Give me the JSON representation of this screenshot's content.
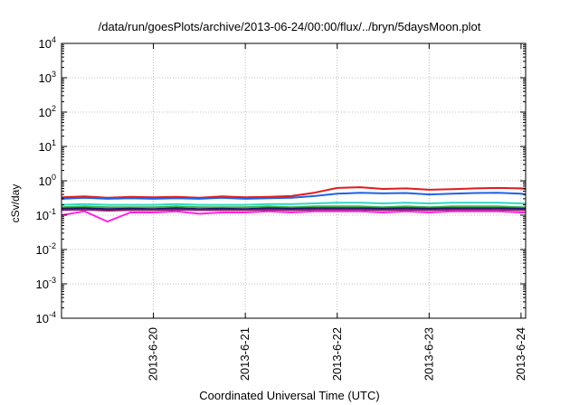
{
  "chart_data": {
    "type": "line",
    "title": "/data/run/goesPlots/archive/2013-06-24/00:00/flux/../bryn/5daysMoon.plot",
    "xlabel": "Coordinated Universal Time (UTC)",
    "ylabel": "cSv/day",
    "yscale": "log",
    "ylim": [
      0.0001,
      10000
    ],
    "y_ticks": [
      {
        "value": 0.0001,
        "base": "10",
        "exp": "-4"
      },
      {
        "value": 0.001,
        "base": "10",
        "exp": "-3"
      },
      {
        "value": 0.01,
        "base": "10",
        "exp": "-2"
      },
      {
        "value": 0.1,
        "base": "10",
        "exp": "-1"
      },
      {
        "value": 1,
        "base": "10",
        "exp": "0"
      },
      {
        "value": 10,
        "base": "10",
        "exp": "1"
      },
      {
        "value": 100,
        "base": "10",
        "exp": "2"
      },
      {
        "value": 1000,
        "base": "10",
        "exp": "3"
      },
      {
        "value": 10000,
        "base": "10",
        "exp": "4"
      }
    ],
    "x_ticks": [
      "2013-6-20",
      "2013-6-21",
      "2013-6-22",
      "2013-6-23",
      "2013-6-24"
    ],
    "x_tick_values": [
      1.0,
      2.0,
      3.0,
      4.0,
      5.0
    ],
    "xlim": [
      0.0,
      5.05
    ],
    "grid": true,
    "legend": "none",
    "series": [
      {
        "color": "#e41a1c",
        "x": [
          0.0,
          0.25,
          0.5,
          0.75,
          1.0,
          1.25,
          1.5,
          1.75,
          2.0,
          2.25,
          2.5,
          2.75,
          3.0,
          3.25,
          3.5,
          3.75,
          4.0,
          4.25,
          4.5,
          4.75,
          5.0,
          5.05
        ],
        "y": [
          0.33,
          0.35,
          0.32,
          0.34,
          0.33,
          0.34,
          0.32,
          0.35,
          0.33,
          0.34,
          0.36,
          0.45,
          0.62,
          0.65,
          0.58,
          0.6,
          0.55,
          0.57,
          0.6,
          0.62,
          0.6,
          0.58
        ]
      },
      {
        "color": "#1e63e6",
        "x": [
          0.0,
          0.25,
          0.5,
          0.75,
          1.0,
          1.25,
          1.5,
          1.75,
          2.0,
          2.25,
          2.5,
          2.75,
          3.0,
          3.25,
          3.5,
          3.75,
          4.0,
          4.25,
          4.5,
          4.75,
          5.0,
          5.05
        ],
        "y": [
          0.3,
          0.32,
          0.3,
          0.31,
          0.3,
          0.31,
          0.3,
          0.32,
          0.3,
          0.31,
          0.32,
          0.36,
          0.42,
          0.45,
          0.43,
          0.44,
          0.4,
          0.42,
          0.44,
          0.45,
          0.42,
          0.4
        ]
      },
      {
        "color": "#2bd9c4",
        "x": [
          0.0,
          0.25,
          0.5,
          0.75,
          1.0,
          1.25,
          1.5,
          1.75,
          2.0,
          2.25,
          2.5,
          2.75,
          3.0,
          3.25,
          3.5,
          3.75,
          4.0,
          4.25,
          4.5,
          4.75,
          5.0,
          5.05
        ],
        "y": [
          0.2,
          0.21,
          0.2,
          0.2,
          0.2,
          0.21,
          0.2,
          0.2,
          0.2,
          0.21,
          0.21,
          0.22,
          0.23,
          0.23,
          0.22,
          0.23,
          0.22,
          0.23,
          0.23,
          0.23,
          0.22,
          0.22
        ]
      },
      {
        "color": "#3cb34a",
        "x": [
          0.0,
          0.25,
          0.5,
          0.75,
          1.0,
          1.25,
          1.5,
          1.75,
          2.0,
          2.25,
          2.5,
          2.75,
          3.0,
          3.25,
          3.5,
          3.75,
          4.0,
          4.25,
          4.5,
          4.75,
          5.0,
          5.05
        ],
        "y": [
          0.17,
          0.18,
          0.17,
          0.17,
          0.17,
          0.18,
          0.17,
          0.17,
          0.17,
          0.18,
          0.17,
          0.18,
          0.18,
          0.18,
          0.17,
          0.18,
          0.17,
          0.18,
          0.18,
          0.18,
          0.17,
          0.17
        ]
      },
      {
        "color": "#1a1a66",
        "x": [
          0.0,
          0.25,
          0.5,
          0.75,
          1.0,
          1.25,
          1.5,
          1.75,
          2.0,
          2.25,
          2.5,
          2.75,
          3.0,
          3.25,
          3.5,
          3.75,
          4.0,
          4.25,
          4.5,
          4.75,
          5.0,
          5.05
        ],
        "y": [
          0.155,
          0.16,
          0.15,
          0.155,
          0.15,
          0.16,
          0.15,
          0.155,
          0.15,
          0.16,
          0.155,
          0.16,
          0.16,
          0.16,
          0.155,
          0.16,
          0.155,
          0.16,
          0.16,
          0.16,
          0.155,
          0.155
        ]
      },
      {
        "color": "#8a1a6a",
        "x": [
          0.0,
          0.25,
          0.5,
          0.75,
          1.0,
          1.25,
          1.5,
          1.75,
          2.0,
          2.25,
          2.5,
          2.75,
          3.0,
          3.25,
          3.5,
          3.75,
          4.0,
          4.25,
          4.5,
          4.75,
          5.0,
          5.05
        ],
        "y": [
          0.14,
          0.145,
          0.135,
          0.14,
          0.14,
          0.145,
          0.14,
          0.14,
          0.14,
          0.145,
          0.14,
          0.145,
          0.145,
          0.145,
          0.14,
          0.145,
          0.14,
          0.145,
          0.145,
          0.145,
          0.14,
          0.14
        ]
      },
      {
        "color": "#ff22e0",
        "x": [
          0.0,
          0.25,
          0.5,
          0.75,
          1.0,
          1.25,
          1.5,
          1.75,
          2.0,
          2.25,
          2.5,
          2.75,
          3.0,
          3.25,
          3.5,
          3.75,
          4.0,
          4.25,
          4.5,
          4.75,
          5.0,
          5.05
        ],
        "y": [
          0.1,
          0.13,
          0.065,
          0.12,
          0.12,
          0.13,
          0.11,
          0.12,
          0.12,
          0.13,
          0.12,
          0.13,
          0.13,
          0.13,
          0.12,
          0.13,
          0.12,
          0.13,
          0.13,
          0.13,
          0.12,
          0.12
        ]
      }
    ]
  }
}
